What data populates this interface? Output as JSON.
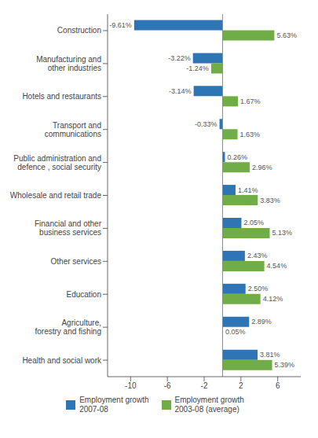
{
  "chart_data": {
    "type": "bar",
    "orientation": "horizontal",
    "categories": [
      "Construction",
      "Manufacturing and\nother industries",
      "Hotels and restaurants",
      "Transport and\ncommunications",
      "Public administration and\ndefence , social security",
      "Wholesale and retail trade",
      "Financial and other\nbusiness services",
      "Other services",
      "Education",
      "Agriculture,\nforestry and fishing",
      "Health and social work"
    ],
    "series": [
      {
        "name": "Employment growth\n2007-08",
        "color": "#2E75B6",
        "values": [
          -9.61,
          -3.22,
          -3.14,
          -0.33,
          0.26,
          1.41,
          2.05,
          2.43,
          2.5,
          2.89,
          3.81
        ],
        "value_labels": [
          "-9.61%",
          "-3.22%",
          "-3.14%",
          "-0.33%",
          "0.26%",
          "1.41%",
          "2.05%",
          "2.43%",
          "2.50%",
          "2.89%",
          "3.81%"
        ]
      },
      {
        "name": "Employment growth\n2003-08 (average)",
        "color": "#70AD47",
        "values": [
          5.63,
          -1.24,
          1.67,
          1.63,
          2.96,
          3.83,
          5.13,
          4.54,
          4.12,
          0.05,
          5.39
        ],
        "value_labels": [
          "5.63%",
          "-1.24%",
          "1.67%",
          "1.63%",
          "2.96%",
          "3.83%",
          "5.13%",
          "4.54%",
          "4.12%",
          "0.05%",
          "5.39%"
        ]
      }
    ],
    "xlim": [
      -12.5,
      8.5
    ],
    "xticks": [
      -10,
      -6,
      -2,
      2,
      6
    ],
    "data_labels": true,
    "grid": false,
    "legend": "bottom"
  }
}
